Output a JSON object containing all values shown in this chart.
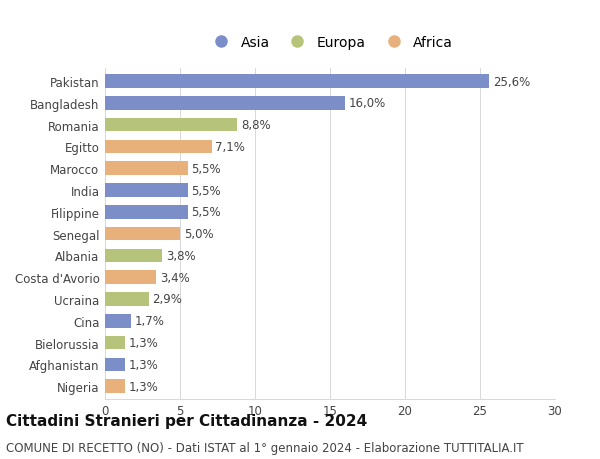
{
  "categories": [
    "Pakistan",
    "Bangladesh",
    "Romania",
    "Egitto",
    "Marocco",
    "India",
    "Filippine",
    "Senegal",
    "Albania",
    "Costa d'Avorio",
    "Ucraina",
    "Cina",
    "Bielorussia",
    "Afghanistan",
    "Nigeria"
  ],
  "values": [
    25.6,
    16.0,
    8.8,
    7.1,
    5.5,
    5.5,
    5.5,
    5.0,
    3.8,
    3.4,
    2.9,
    1.7,
    1.3,
    1.3,
    1.3
  ],
  "labels": [
    "25,6%",
    "16,0%",
    "8,8%",
    "7,1%",
    "5,5%",
    "5,5%",
    "5,5%",
    "5,0%",
    "3,8%",
    "3,4%",
    "2,9%",
    "1,7%",
    "1,3%",
    "1,3%",
    "1,3%"
  ],
  "continents": [
    "Asia",
    "Asia",
    "Europa",
    "Africa",
    "Africa",
    "Asia",
    "Asia",
    "Africa",
    "Europa",
    "Africa",
    "Europa",
    "Asia",
    "Europa",
    "Asia",
    "Africa"
  ],
  "colors": {
    "Asia": "#7b8ec8",
    "Europa": "#b5c47a",
    "Africa": "#e8b07a"
  },
  "legend_labels": [
    "Asia",
    "Europa",
    "Africa"
  ],
  "xlim": [
    0,
    30
  ],
  "xticks": [
    0,
    5,
    10,
    15,
    20,
    25,
    30
  ],
  "title": "Cittadini Stranieri per Cittadinanza - 2024",
  "subtitle": "COMUNE DI RECETTO (NO) - Dati ISTAT al 1° gennaio 2024 - Elaborazione TUTTITALIA.IT",
  "title_fontsize": 11,
  "subtitle_fontsize": 8.5,
  "background_color": "#ffffff",
  "grid_color": "#d8d8d8",
  "label_fontsize": 8.5,
  "ytick_fontsize": 8.5,
  "xtick_fontsize": 8.5,
  "legend_fontsize": 10,
  "bar_height": 0.62
}
